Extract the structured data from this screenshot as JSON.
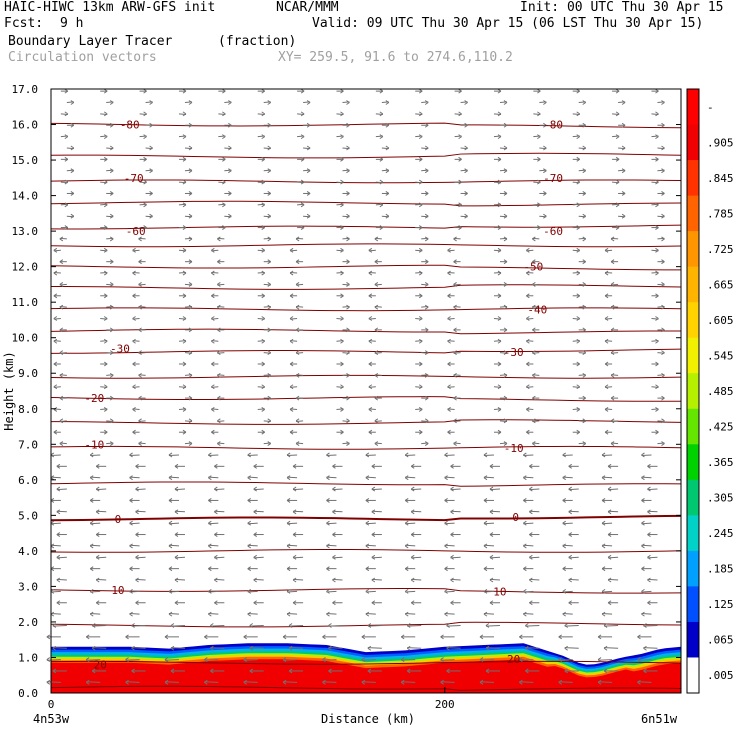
{
  "header": {
    "model": "HAIC-HIWC 13km ARW-GFS init",
    "org": "NCAR/MMM",
    "init": "Init: 00 UTC Thu 30 Apr 15",
    "fcst_label": "Fcst:",
    "fcst_value": "9 h",
    "valid": "Valid: 09 UTC Thu 30 Apr 15 (06 LST Thu 30 Apr 15)",
    "field_name": "Boundary Layer Tracer",
    "field_units": "(fraction)",
    "overlay": "Circulation vectors",
    "xy_range": "XY= 259.5, 91.6 to 274.6,110.2"
  },
  "chart_data": {
    "type": "heatmap",
    "xlabel": "Distance (km)",
    "ylabel": "Height (km)",
    "xlim": [
      0,
      320
    ],
    "ylim": [
      0.0,
      17.0
    ],
    "x_ticks": [
      "0",
      "200"
    ],
    "x_end_labels": [
      "4n53w",
      "6n51w"
    ],
    "y_ticks": [
      "0.0",
      "1.0",
      "2.0",
      "3.0",
      "4.0",
      "5.0",
      "6.0",
      "7.0",
      "8.0",
      "9.0",
      "10.0",
      "11.0",
      "12.0",
      "13.0",
      "14.0",
      "15.0",
      "16.0",
      "17.0"
    ],
    "colorbar": {
      "labels": [
        ".005",
        ".065",
        ".125",
        ".185",
        ".245",
        ".305",
        ".365",
        ".425",
        ".485",
        ".545",
        ".605",
        ".665",
        ".725",
        ".785",
        ".845",
        ".905",
        "-"
      ],
      "colors": [
        "#ffffff",
        "#0000c8",
        "#0050ff",
        "#00a0ff",
        "#00d2c8",
        "#00c870",
        "#00d200",
        "#64e600",
        "#b4f000",
        "#f0f000",
        "#ffd200",
        "#ffb400",
        "#ff9600",
        "#ff6400",
        "#ff3200",
        "#f00000",
        "#ff0000"
      ]
    },
    "tracer_top": {
      "x": [
        0,
        20,
        40,
        60,
        80,
        100,
        120,
        140,
        160,
        180,
        200,
        220,
        240,
        260,
        270,
        275,
        280,
        290,
        300,
        310,
        320
      ],
      "height": [
        1.3,
        1.3,
        1.3,
        1.25,
        1.35,
        1.4,
        1.4,
        1.35,
        1.15,
        1.2,
        1.3,
        1.35,
        1.4,
        1.05,
        0.8,
        0.8,
        0.85,
        1.0,
        1.1,
        1.25,
        1.3
      ]
    },
    "contour_labels": [
      {
        "text": "-80",
        "x": 40,
        "y": 16.0
      },
      {
        "text": "-80",
        "x": 255,
        "y": 16.0
      },
      {
        "text": "-70",
        "x": 42,
        "y": 14.5
      },
      {
        "text": "-70",
        "x": 255,
        "y": 14.5
      },
      {
        "text": "-60",
        "x": 43,
        "y": 13.0
      },
      {
        "text": "-60",
        "x": 255,
        "y": 13.0
      },
      {
        "text": "-50",
        "x": 245,
        "y": 12.0
      },
      {
        "text": "-40",
        "x": 247,
        "y": 10.8
      },
      {
        "text": "-30",
        "x": 35,
        "y": 9.7
      },
      {
        "text": "-30",
        "x": 235,
        "y": 9.6
      },
      {
        "text": "-20",
        "x": 22,
        "y": 8.3
      },
      {
        "text": "-10",
        "x": 22,
        "y": 7.0
      },
      {
        "text": "-10",
        "x": 235,
        "y": 6.9
      },
      {
        "text": "0",
        "x": 34,
        "y": 4.9
      },
      {
        "text": "0",
        "x": 236,
        "y": 4.95
      },
      {
        "text": "10",
        "x": 34,
        "y": 2.9
      },
      {
        "text": "10",
        "x": 228,
        "y": 2.85
      },
      {
        "text": "20",
        "x": 25,
        "y": 0.8
      },
      {
        "text": "20",
        "x": 235,
        "y": 0.95
      }
    ],
    "contour_heights": [
      0.15,
      0.85,
      1.9,
      2.9,
      4.0,
      4.9,
      5.9,
      6.9,
      7.6,
      8.3,
      8.9,
      9.6,
      10.2,
      10.8,
      11.4,
      12.0,
      12.6,
      13.1,
      13.8,
      14.4,
      15.1,
      16.0
    ]
  }
}
